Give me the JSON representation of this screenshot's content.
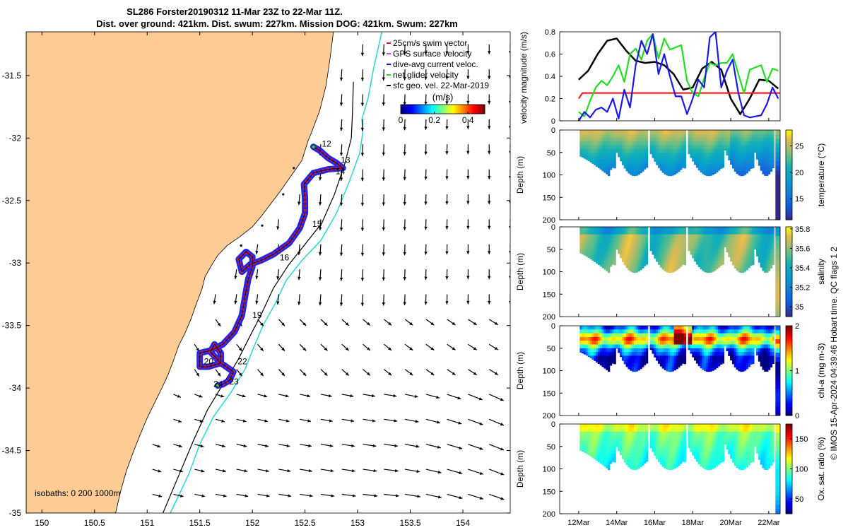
{
  "title_line1": "SL286 Forster20190312 11-Mar 23Z to 22-Mar 11Z.",
  "title_line2": "Dist. over ground: 421km. Dist. swum: 227km. Mission DOG: 421km. Swum: 227km",
  "credit": "© IMOS 15-Apr-2024 04:39:46 Hobart time. QC flags 1  2",
  "colors": {
    "land": "#fdcb94",
    "track_red": "#e8141e",
    "track_blue": "#1a1ae6",
    "isobath_200": "#2ad4d4",
    "isobath_1000": "#000000",
    "speed_black": "#000000",
    "speed_blue": "#1a1ae6",
    "speed_green": "#22dd22",
    "speed_red": "#ee2222"
  },
  "chart_data": [
    {
      "type": "map",
      "xlim": [
        149.85,
        154.45
      ],
      "ylim": [
        -35.0,
        -31.15
      ],
      "x_ticks": [
        150,
        150.5,
        151,
        151.5,
        152,
        152.5,
        153,
        153.5,
        154
      ],
      "x_tick_labels": [
        "150",
        "150.5",
        "151",
        "151.5",
        "152",
        "152.5",
        "153",
        "153.5",
        "154"
      ],
      "y_ticks": [
        -31.5,
        -32,
        -32.5,
        -33,
        -33.5,
        -34,
        -34.5,
        -35
      ],
      "y_tick_labels": [
        "-31.5",
        "-32",
        "-32.5",
        "-33",
        "-33.5",
        "-34",
        "-34.5",
        "-35"
      ],
      "legend": [
        {
          "label": "25cm/s swim vector",
          "color": "#e8141e"
        },
        {
          "label": "GPS surface velocity",
          "color": "#e040e0"
        },
        {
          "label": "dive-avg current veloc.",
          "color": "#1a1ae6"
        },
        {
          "label": "net glider velocity",
          "color": "#22dd22"
        },
        {
          "label": "sfc geo. vel. 22-Mar-2019",
          "color": "#000000"
        }
      ],
      "colorbar": {
        "label": "(m/s)",
        "ticks": [
          "0",
          "0.2",
          "0.4"
        ],
        "range": [
          0,
          0.5
        ]
      },
      "isobath_label": "isobaths: 0   200  1000m",
      "day_labels": [
        {
          "text": "12",
          "lon": 152.66,
          "lat": -32.07
        },
        {
          "text": "13",
          "lon": 152.84,
          "lat": -32.2
        },
        {
          "text": "14",
          "lon": 152.79,
          "lat": -32.29
        },
        {
          "text": "15",
          "lon": 152.57,
          "lat": -32.71
        },
        {
          "text": "16",
          "lon": 152.26,
          "lat": -32.98
        },
        {
          "text": "19",
          "lon": 152.0,
          "lat": -33.44
        },
        {
          "text": "20",
          "lon": 151.54,
          "lat": -33.81
        },
        {
          "text": "22",
          "lon": 151.86,
          "lat": -33.81
        },
        {
          "text": "23",
          "lon": 151.78,
          "lat": -33.97
        },
        {
          "text": "24",
          "lon": 151.63,
          "lat": -33.99
        }
      ],
      "glider_track": [
        [
          152.58,
          -32.07
        ],
        [
          152.64,
          -32.1
        ],
        [
          152.72,
          -32.16
        ],
        [
          152.8,
          -32.2
        ],
        [
          152.86,
          -32.24
        ],
        [
          152.72,
          -32.25
        ],
        [
          152.58,
          -32.28
        ],
        [
          152.49,
          -32.37
        ],
        [
          152.5,
          -32.48
        ],
        [
          152.5,
          -32.6
        ],
        [
          152.45,
          -32.72
        ],
        [
          152.35,
          -32.84
        ],
        [
          152.2,
          -32.93
        ],
        [
          152.08,
          -32.98
        ],
        [
          151.98,
          -33.01
        ],
        [
          151.9,
          -33.07
        ],
        [
          151.87,
          -32.97
        ],
        [
          151.94,
          -32.91
        ],
        [
          152.0,
          -32.95
        ],
        [
          152.0,
          -33.03
        ],
        [
          151.96,
          -33.13
        ],
        [
          151.93,
          -33.27
        ],
        [
          151.9,
          -33.42
        ],
        [
          151.83,
          -33.55
        ],
        [
          151.72,
          -33.65
        ],
        [
          151.6,
          -33.7
        ],
        [
          151.5,
          -33.72
        ],
        [
          151.5,
          -33.83
        ],
        [
          151.58,
          -33.83
        ],
        [
          151.7,
          -33.8
        ],
        [
          151.7,
          -33.72
        ],
        [
          151.64,
          -33.65
        ],
        [
          151.6,
          -33.71
        ],
        [
          151.7,
          -33.8
        ],
        [
          151.82,
          -33.87
        ],
        [
          151.78,
          -33.94
        ],
        [
          151.72,
          -33.97
        ],
        [
          151.67,
          -33.98
        ]
      ],
      "coastline": [
        [
          152.77,
          -31.15
        ],
        [
          152.74,
          -31.35
        ],
        [
          152.7,
          -31.58
        ],
        [
          152.64,
          -31.78
        ],
        [
          152.56,
          -31.96
        ],
        [
          152.53,
          -32.02
        ],
        [
          152.47,
          -32.18
        ],
        [
          152.37,
          -32.3
        ],
        [
          152.27,
          -32.42
        ],
        [
          152.18,
          -32.52
        ],
        [
          152.09,
          -32.62
        ],
        [
          152.0,
          -32.71
        ],
        [
          151.88,
          -32.79
        ],
        [
          151.76,
          -32.86
        ],
        [
          151.67,
          -32.94
        ],
        [
          151.61,
          -33.02
        ],
        [
          151.55,
          -33.11
        ],
        [
          151.52,
          -33.21
        ],
        [
          151.47,
          -33.32
        ],
        [
          151.42,
          -33.44
        ],
        [
          151.36,
          -33.56
        ],
        [
          151.3,
          -33.66
        ],
        [
          151.25,
          -33.78
        ],
        [
          151.2,
          -33.89
        ],
        [
          151.14,
          -34.0
        ],
        [
          151.07,
          -34.12
        ],
        [
          151.0,
          -34.24
        ],
        [
          150.93,
          -34.38
        ],
        [
          150.86,
          -34.53
        ],
        [
          150.8,
          -34.67
        ],
        [
          150.75,
          -34.82
        ],
        [
          150.7,
          -35.0
        ]
      ],
      "isobath_200": [
        [
          153.23,
          -31.15
        ],
        [
          153.15,
          -31.45
        ],
        [
          153.1,
          -31.68
        ],
        [
          153.04,
          -31.85
        ],
        [
          153.05,
          -31.95
        ],
        [
          153.02,
          -32.12
        ],
        [
          152.92,
          -32.35
        ],
        [
          152.8,
          -32.6
        ],
        [
          152.65,
          -32.82
        ],
        [
          152.47,
          -32.98
        ],
        [
          152.32,
          -33.14
        ],
        [
          152.22,
          -33.32
        ],
        [
          152.1,
          -33.5
        ],
        [
          152.0,
          -33.7
        ],
        [
          151.93,
          -33.85
        ],
        [
          151.8,
          -34.03
        ],
        [
          151.63,
          -34.23
        ],
        [
          151.5,
          -34.45
        ],
        [
          151.4,
          -34.68
        ],
        [
          151.3,
          -34.86
        ],
        [
          151.22,
          -35.0
        ]
      ],
      "isobath_1000": [
        [
          152.96,
          -31.55
        ],
        [
          152.95,
          -31.82
        ],
        [
          152.94,
          -32.0
        ],
        [
          152.88,
          -32.2
        ],
        [
          152.78,
          -32.45
        ],
        [
          152.66,
          -32.68
        ],
        [
          152.5,
          -32.85
        ],
        [
          152.34,
          -33.02
        ],
        [
          152.2,
          -33.2
        ],
        [
          152.09,
          -33.4
        ],
        [
          151.98,
          -33.58
        ],
        [
          151.86,
          -33.78
        ],
        [
          151.72,
          -33.97
        ],
        [
          151.57,
          -34.18
        ],
        [
          151.44,
          -34.42
        ],
        [
          151.3,
          -34.7
        ],
        [
          151.15,
          -35.0
        ]
      ]
    },
    {
      "type": "line",
      "ylabel": "velocity magnitude (m/s)",
      "xlim": [
        11.0,
        22.6
      ],
      "ylim": [
        0,
        0.8
      ],
      "y_ticks": [
        0,
        0.2,
        0.4,
        0.6,
        0.8
      ],
      "y_tick_labels": [
        "0",
        "0.2",
        "0.4",
        "0.6",
        "0.8"
      ],
      "series": [
        {
          "color": "#000000",
          "x": [
            12.0,
            12.5,
            13.0,
            13.5,
            14.0,
            14.5,
            15.0,
            15.5,
            16.0,
            16.5,
            17.0,
            17.5,
            18.0,
            18.5,
            19.0,
            19.5,
            20.0,
            20.5,
            21.0,
            21.5,
            22.0,
            22.5
          ],
          "y": [
            0.37,
            0.45,
            0.6,
            0.72,
            0.74,
            0.63,
            0.54,
            0.52,
            0.53,
            0.5,
            0.42,
            0.28,
            0.3,
            0.47,
            0.53,
            0.46,
            0.2,
            0.06,
            0.2,
            0.37,
            0.36,
            0.29
          ]
        },
        {
          "color": "#ee2222",
          "x": [
            12.0,
            12.2,
            22.6
          ],
          "y": [
            0.2,
            0.25,
            0.25
          ]
        },
        {
          "color": "#22dd22",
          "x": [
            12.0,
            12.3,
            12.6,
            12.9,
            13.2,
            13.5,
            13.8,
            14.1,
            14.4,
            14.7,
            15.0,
            15.3,
            15.6,
            15.9,
            16.2,
            16.5,
            16.8,
            17.1,
            17.4,
            17.7,
            18.0,
            18.3,
            18.6,
            18.9,
            19.2,
            19.5,
            19.8,
            20.1,
            20.4,
            20.7,
            21.0,
            21.3,
            21.6,
            21.9,
            22.2,
            22.5
          ],
          "y": [
            0.08,
            0.04,
            0.18,
            0.3,
            0.36,
            0.32,
            0.4,
            0.5,
            0.35,
            0.6,
            0.65,
            0.55,
            0.72,
            0.78,
            0.56,
            0.74,
            0.64,
            0.66,
            0.68,
            0.36,
            0.25,
            0.22,
            0.38,
            0.52,
            0.5,
            0.52,
            0.52,
            0.6,
            0.42,
            0.25,
            0.46,
            0.48,
            0.5,
            0.35,
            0.47,
            0.45
          ]
        },
        {
          "color": "#1a1ae6",
          "x": [
            12.0,
            12.3,
            12.6,
            12.9,
            13.2,
            13.5,
            13.8,
            14.1,
            14.4,
            14.7,
            15.0,
            15.3,
            15.6,
            15.9,
            16.2,
            16.5,
            16.8,
            17.1,
            17.4,
            17.7,
            18.0,
            18.3,
            18.6,
            18.9,
            19.2,
            19.5,
            19.8,
            20.1,
            20.4,
            20.7,
            21.0,
            21.3,
            21.6,
            21.9,
            22.2,
            22.5
          ],
          "y": [
            0.0,
            0.08,
            0.03,
            0.1,
            0.12,
            0.08,
            0.2,
            0.02,
            0.28,
            0.12,
            0.5,
            0.72,
            0.6,
            0.78,
            0.42,
            0.6,
            0.4,
            0.22,
            0.22,
            0.06,
            0.2,
            0.37,
            0.3,
            0.75,
            0.8,
            0.3,
            0.45,
            0.55,
            0.25,
            0.05,
            0.03,
            0.04,
            0.05,
            0.15,
            0.3,
            0.2
          ]
        }
      ]
    },
    {
      "type": "heatmap",
      "ylabel": "Depth (m)",
      "colorbar_label": "temperature (°C)",
      "ylim": [
        0,
        200
      ],
      "y_ticks": [
        0,
        50,
        100,
        150,
        200
      ],
      "y_tick_labels": [
        "0",
        "50",
        "100",
        "150",
        "200"
      ],
      "colorbar_ticks": [
        "15",
        "20",
        "25"
      ],
      "colorbar_range": [
        11,
        28
      ]
    },
    {
      "type": "heatmap",
      "ylabel": "Depth (m)",
      "colorbar_label": "salinity",
      "ylim": [
        0,
        200
      ],
      "y_ticks": [
        0,
        50,
        100,
        150,
        200
      ],
      "y_tick_labels": [
        "0",
        "50",
        "100",
        "150",
        "200"
      ],
      "colorbar_ticks": [
        "35",
        "35.2",
        "35.4",
        "35.6",
        "35.8"
      ],
      "colorbar_range": [
        34.9,
        35.82
      ]
    },
    {
      "type": "heatmap",
      "ylabel": "Depth (m)",
      "colorbar_label": "chl-a (mg m-3)",
      "ylim": [
        0,
        200
      ],
      "y_ticks": [
        0,
        50,
        100,
        150,
        200
      ],
      "y_tick_labels": [
        "0",
        "50",
        "100",
        "150",
        "200"
      ],
      "colorbar_ticks": [
        "0",
        "1",
        "2"
      ],
      "colorbar_range": [
        0,
        2
      ]
    },
    {
      "type": "heatmap",
      "ylabel": "Depth (m)",
      "colorbar_label": "Ox. sat. ratio (%)",
      "ylim": [
        0,
        200
      ],
      "y_ticks": [
        0,
        50,
        100,
        150,
        200
      ],
      "y_tick_labels": [
        "0",
        "50",
        "100",
        "150",
        "200"
      ],
      "colorbar_ticks": [
        "50",
        "100",
        "150"
      ],
      "colorbar_range": [
        25,
        175
      ],
      "x_ticks": [
        12,
        14,
        16,
        18,
        20,
        22
      ],
      "x_tick_labels": [
        "12Mar",
        "14Mar",
        "16Mar",
        "18Mar",
        "20Mar",
        "22Mar"
      ]
    }
  ]
}
